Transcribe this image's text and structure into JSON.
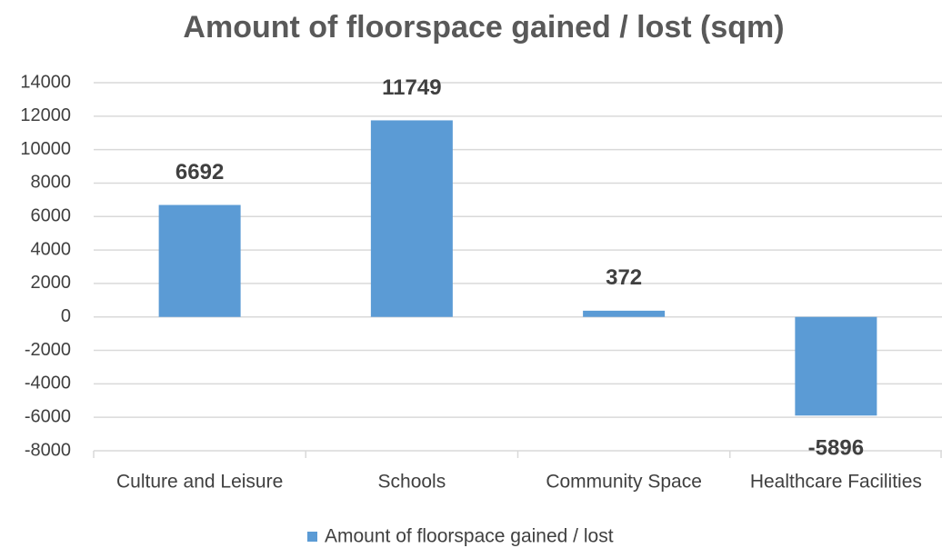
{
  "chart_data": {
    "type": "bar",
    "title": "Amount of floorspace gained / lost (sqm)",
    "categories": [
      "Culture and Leisure",
      "Schools",
      "Community Space",
      "Healthcare Facilities"
    ],
    "series": [
      {
        "name": "Amount of floorspace gained / lost",
        "color": "#5b9bd5",
        "values": [
          6692,
          11749,
          372,
          -5896
        ]
      }
    ],
    "ylim": [
      -8000,
      14000
    ],
    "yticks": [
      -8000,
      -6000,
      -4000,
      -2000,
      0,
      2000,
      4000,
      6000,
      8000,
      10000,
      12000,
      14000
    ],
    "grid": true,
    "legend": "bottom",
    "data_labels": true
  }
}
